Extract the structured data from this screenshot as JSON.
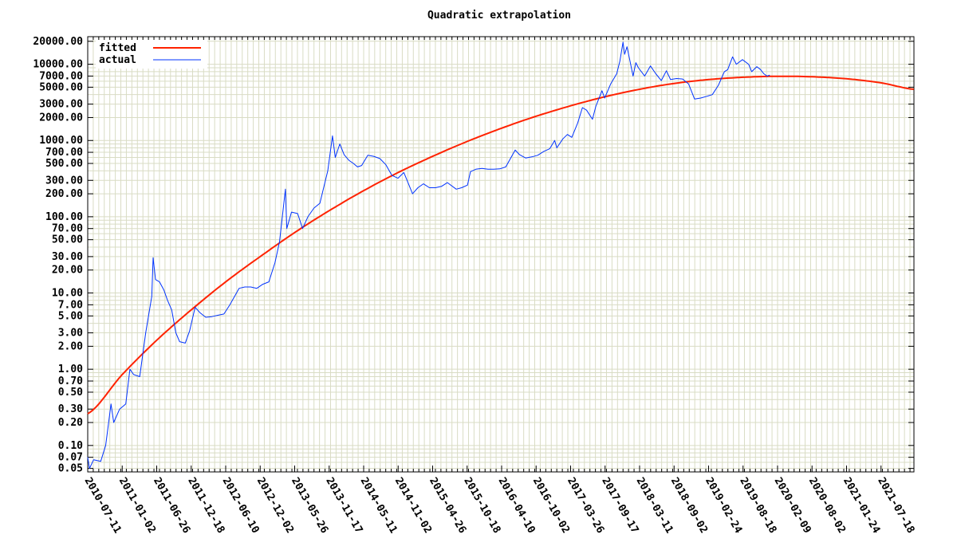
{
  "chart_data": {
    "type": "line",
    "title": "Quadratic extrapolation",
    "xlabel": "",
    "ylabel": "",
    "y_scale": "log",
    "grid": true,
    "legend_placement": "top-left",
    "xlim": [
      "2010-07-11",
      "2022-01-01"
    ],
    "ylim": [
      0.045,
      23000
    ],
    "x_tick_labels": [
      "2010-07-11",
      "2011-01-02",
      "2011-06-26",
      "2011-12-18",
      "2012-06-10",
      "2012-12-02",
      "2013-05-26",
      "2013-11-17",
      "2014-05-11",
      "2014-11-02",
      "2015-04-26",
      "2015-10-18",
      "2016-04-10",
      "2016-10-02",
      "2017-03-26",
      "2017-09-17",
      "2018-03-11",
      "2018-09-02",
      "2019-02-24",
      "2019-08-18",
      "2020-02-09",
      "2020-08-02",
      "2021-01-24",
      "2021-07-18"
    ],
    "y_ticks": [
      0.05,
      0.07,
      0.1,
      0.2,
      0.3,
      0.5,
      0.7,
      1,
      2,
      3,
      5,
      7,
      10,
      20,
      30,
      50,
      70,
      100,
      200,
      300,
      500,
      700,
      1000,
      2000,
      3000,
      5000,
      7000,
      10000,
      20000
    ],
    "y_tick_labels": [
      "0.05",
      "0.07",
      "0.10",
      "0.20",
      "0.30",
      "0.50",
      "0.70",
      "1.00",
      "2.00",
      "3.00",
      "5.00",
      "7.00",
      "10.00",
      "20.00",
      "30.00",
      "50.00",
      "70.00",
      "100.00",
      "200.00",
      "300.00",
      "500.00",
      "700.00",
      "1000.00",
      "2000.00",
      "3000.00",
      "5000.00",
      "7000.00",
      "10000.00",
      "20000.00"
    ],
    "series": [
      {
        "name": "fitted",
        "color": "#ff2200",
        "x": [
          "2010-07-11",
          "2011-01-02",
          "2011-06-26",
          "2011-12-18",
          "2012-06-10",
          "2012-12-02",
          "2013-05-26",
          "2013-11-17",
          "2014-05-11",
          "2014-11-02",
          "2015-04-26",
          "2015-10-18",
          "2016-04-10",
          "2016-10-02",
          "2017-03-26",
          "2017-09-17",
          "2018-03-11",
          "2018-09-02",
          "2019-02-24",
          "2019-08-18",
          "2020-02-09",
          "2020-08-02",
          "2021-01-24",
          "2021-07-18",
          "2021-12-31"
        ],
        "values": [
          0.26,
          0.85,
          2.4,
          6.0,
          14,
          30,
          62,
          120,
          220,
          380,
          620,
          970,
          1450,
          2080,
          2850,
          3750,
          4700,
          5600,
          6300,
          6750,
          6950,
          6850,
          6450,
          5700,
          4700
        ]
      },
      {
        "name": "actual",
        "color": "#0033ff",
        "x": [
          "2010-07-11",
          "2010-07-20",
          "2010-08-10",
          "2010-09-15",
          "2010-10-10",
          "2010-11-06",
          "2010-11-20",
          "2010-12-20",
          "2011-01-20",
          "2011-02-10",
          "2011-03-01",
          "2011-04-01",
          "2011-05-01",
          "2011-06-01",
          "2011-06-08",
          "2011-06-20",
          "2011-07-10",
          "2011-08-01",
          "2011-08-20",
          "2011-09-10",
          "2011-10-01",
          "2011-10-20",
          "2011-11-18",
          "2011-12-10",
          "2012-01-07",
          "2012-02-01",
          "2012-03-01",
          "2012-04-01",
          "2012-05-01",
          "2012-06-01",
          "2012-07-01",
          "2012-08-17",
          "2012-09-15",
          "2012-10-15",
          "2012-11-15",
          "2012-12-15",
          "2013-01-15",
          "2013-02-15",
          "2013-03-10",
          "2013-04-09",
          "2013-04-16",
          "2013-05-10",
          "2013-06-10",
          "2013-07-05",
          "2013-08-01",
          "2013-09-01",
          "2013-10-01",
          "2013-11-10",
          "2013-12-04",
          "2013-12-18",
          "2014-01-10",
          "2014-02-01",
          "2014-02-25",
          "2014-03-20",
          "2014-04-10",
          "2014-05-01",
          "2014-06-01",
          "2014-07-01",
          "2014-08-01",
          "2014-09-01",
          "2014-10-01",
          "2014-11-01",
          "2014-12-01",
          "2015-01-14",
          "2015-02-10",
          "2015-03-10",
          "2015-04-10",
          "2015-05-10",
          "2015-06-10",
          "2015-07-10",
          "2015-08-24",
          "2015-09-20",
          "2015-10-20",
          "2015-11-04",
          "2015-12-01",
          "2016-01-01",
          "2016-02-01",
          "2016-03-01",
          "2016-04-01",
          "2016-05-01",
          "2016-06-18",
          "2016-07-10",
          "2016-08-10",
          "2016-09-10",
          "2016-10-10",
          "2016-11-10",
          "2016-12-10",
          "2017-01-04",
          "2017-01-15",
          "2017-02-15",
          "2017-03-10",
          "2017-04-01",
          "2017-05-01",
          "2017-05-25",
          "2017-06-15",
          "2017-07-15",
          "2017-08-01",
          "2017-09-01",
          "2017-09-15",
          "2017-10-15",
          "2017-11-15",
          "2017-12-01",
          "2017-12-17",
          "2017-12-25",
          "2018-01-06",
          "2018-01-20",
          "2018-02-06",
          "2018-02-20",
          "2018-03-05",
          "2018-04-06",
          "2018-05-05",
          "2018-06-01",
          "2018-06-29",
          "2018-07-25",
          "2018-08-15",
          "2018-09-15",
          "2018-10-15",
          "2018-11-15",
          "2018-12-15",
          "2019-01-15",
          "2019-02-15",
          "2019-03-15",
          "2019-04-15",
          "2019-05-15",
          "2019-06-01",
          "2019-06-26",
          "2019-07-15",
          "2019-08-15",
          "2019-09-15",
          "2019-10-01",
          "2019-10-27",
          "2019-11-15",
          "2019-12-01",
          "2019-12-18",
          "2020-01-01"
        ],
        "values": [
          0.07,
          0.05,
          0.065,
          0.062,
          0.1,
          0.35,
          0.2,
          0.3,
          0.35,
          1.0,
          0.85,
          0.8,
          3.0,
          9.0,
          29,
          15,
          14,
          11,
          8,
          6,
          3.0,
          2.3,
          2.2,
          3.2,
          6.5,
          5.5,
          4.8,
          4.9,
          5.1,
          5.3,
          7.0,
          11.5,
          12,
          12,
          11.5,
          13,
          14,
          25,
          47,
          230,
          70,
          115,
          110,
          70,
          100,
          130,
          150,
          400,
          1150,
          600,
          900,
          650,
          550,
          500,
          450,
          470,
          640,
          620,
          580,
          480,
          350,
          320,
          380,
          200,
          240,
          270,
          240,
          240,
          250,
          280,
          230,
          240,
          260,
          390,
          420,
          430,
          420,
          420,
          425,
          450,
          750,
          650,
          590,
          610,
          640,
          720,
          780,
          1000,
          800,
          1050,
          1200,
          1100,
          1700,
          2700,
          2500,
          1900,
          2800,
          4500,
          3600,
          5500,
          7500,
          11000,
          19500,
          13500,
          17000,
          11500,
          7000,
          10500,
          9000,
          7000,
          9500,
          7500,
          6100,
          8200,
          6300,
          6500,
          6400,
          5500,
          3500,
          3600,
          3800,
          4000,
          5300,
          8000,
          8500,
          12500,
          10000,
          11500,
          10000,
          8000,
          9300,
          8500,
          7500,
          7000,
          7200
        ]
      }
    ]
  }
}
